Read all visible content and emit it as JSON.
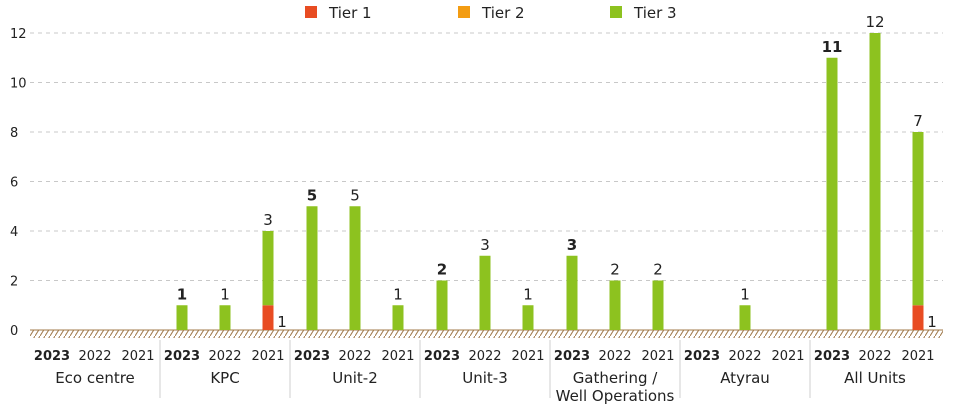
{
  "chart_data": {
    "type": "bar",
    "stacked": true,
    "ylim": [
      0,
      12
    ],
    "yticks": [
      0,
      2,
      4,
      6,
      8,
      10,
      12
    ],
    "grid": true,
    "legend_placement": "top-center",
    "series": [
      {
        "name": "Tier 1",
        "color": "#e84c22"
      },
      {
        "name": "Tier 2",
        "color": "#f39c12"
      },
      {
        "name": "Tier 3",
        "color": "#8dc21f"
      }
    ],
    "groups": [
      {
        "label": "Eco centre",
        "bars": [
          {
            "year": "2023",
            "tier1": 0,
            "tier2": 0,
            "tier3": 0,
            "label": ""
          },
          {
            "year": "2022",
            "tier1": 0,
            "tier2": 0,
            "tier3": 0,
            "label": ""
          },
          {
            "year": "2021",
            "tier1": 0,
            "tier2": 0,
            "tier3": 0,
            "label": ""
          }
        ]
      },
      {
        "label": "KPC",
        "bars": [
          {
            "year": "2023",
            "tier1": 0,
            "tier2": 0,
            "tier3": 1,
            "label": "1"
          },
          {
            "year": "2022",
            "tier1": 0,
            "tier2": 0,
            "tier3": 1,
            "label": "1"
          },
          {
            "year": "2021",
            "tier1": 1,
            "tier2": 0,
            "tier3": 3,
            "label": "3",
            "tier1_label": "1"
          }
        ]
      },
      {
        "label": "Unit-2",
        "bars": [
          {
            "year": "2023",
            "tier1": 0,
            "tier2": 0,
            "tier3": 5,
            "label": "5"
          },
          {
            "year": "2022",
            "tier1": 0,
            "tier2": 0,
            "tier3": 5,
            "label": "5"
          },
          {
            "year": "2021",
            "tier1": 0,
            "tier2": 0,
            "tier3": 1,
            "label": "1"
          }
        ]
      },
      {
        "label": "Unit-3",
        "bars": [
          {
            "year": "2023",
            "tier1": 0,
            "tier2": 0,
            "tier3": 2,
            "label": "2"
          },
          {
            "year": "2022",
            "tier1": 0,
            "tier2": 0,
            "tier3": 3,
            "label": "3"
          },
          {
            "year": "2021",
            "tier1": 0,
            "tier2": 0,
            "tier3": 1,
            "label": "1"
          }
        ]
      },
      {
        "label": "Gathering /\nWell Operations",
        "bars": [
          {
            "year": "2023",
            "tier1": 0,
            "tier2": 0,
            "tier3": 3,
            "label": "3"
          },
          {
            "year": "2022",
            "tier1": 0,
            "tier2": 0,
            "tier3": 2,
            "label": "2"
          },
          {
            "year": "2021",
            "tier1": 0,
            "tier2": 0,
            "tier3": 2,
            "label": "2"
          }
        ]
      },
      {
        "label": "Atyrau",
        "bars": [
          {
            "year": "2023",
            "tier1": 0,
            "tier2": 0,
            "tier3": 0,
            "label": ""
          },
          {
            "year": "2022",
            "tier1": 0,
            "tier2": 0,
            "tier3": 1,
            "label": "1"
          },
          {
            "year": "2021",
            "tier1": 0,
            "tier2": 0,
            "tier3": 0,
            "label": ""
          }
        ]
      },
      {
        "label": "All Units",
        "bars": [
          {
            "year": "2023",
            "tier1": 0,
            "tier2": 0,
            "tier3": 11,
            "label": "11"
          },
          {
            "year": "2022",
            "tier1": 0,
            "tier2": 0,
            "tier3": 12,
            "label": "12"
          },
          {
            "year": "2021",
            "tier1": 1,
            "tier2": 0,
            "tier3": 7,
            "label": "7",
            "tier1_label": "1"
          }
        ]
      }
    ]
  }
}
